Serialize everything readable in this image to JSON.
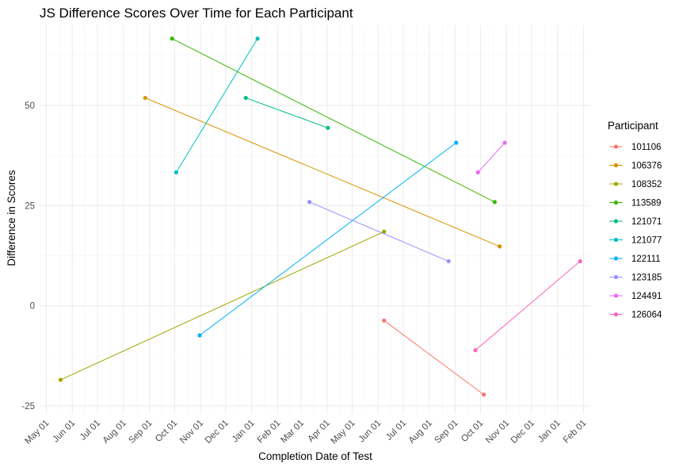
{
  "chart_data": {
    "type": "line",
    "title": "JS Difference Scores Over Time for Each Participant",
    "xlabel": "Completion Date of Test",
    "ylabel": "Difference in Scores",
    "x_ticks": [
      {
        "date": "2022-05-01",
        "label": "May 01"
      },
      {
        "date": "2022-06-01",
        "label": "Jun 01"
      },
      {
        "date": "2022-07-01",
        "label": "Jul 01"
      },
      {
        "date": "2022-08-01",
        "label": "Aug 01"
      },
      {
        "date": "2022-09-01",
        "label": "Sep 01"
      },
      {
        "date": "2022-10-01",
        "label": "Oct 01"
      },
      {
        "date": "2022-11-01",
        "label": "Nov 01"
      },
      {
        "date": "2022-12-01",
        "label": "Dec 01"
      },
      {
        "date": "2023-01-01",
        "label": "Jan 01"
      },
      {
        "date": "2023-02-01",
        "label": "Feb 01"
      },
      {
        "date": "2023-03-01",
        "label": "Mar 01"
      },
      {
        "date": "2023-04-01",
        "label": "Apr 01"
      },
      {
        "date": "2023-05-01",
        "label": "May 01"
      },
      {
        "date": "2023-06-01",
        "label": "Jun 01"
      },
      {
        "date": "2023-07-01",
        "label": "Jul 01"
      },
      {
        "date": "2023-08-01",
        "label": "Aug 01"
      },
      {
        "date": "2023-09-01",
        "label": "Sep 01"
      },
      {
        "date": "2023-10-01",
        "label": "Oct 01"
      },
      {
        "date": "2023-11-01",
        "label": "Nov 01"
      },
      {
        "date": "2023-12-01",
        "label": "Dec 01"
      },
      {
        "date": "2024-01-01",
        "label": "Jan 01"
      },
      {
        "date": "2024-02-01",
        "label": "Feb 01"
      }
    ],
    "xlim": [
      "2022-04-23",
      "2024-02-09"
    ],
    "y_ticks": [
      -25,
      0,
      25,
      50
    ],
    "ylim": [
      -27,
      70
    ],
    "grid": true,
    "legend_title": "Participant",
    "legend_position": "right",
    "series": [
      {
        "name": "101106",
        "color": "#F8766D",
        "points": [
          {
            "x": "2023-06-08",
            "y": -3.7
          },
          {
            "x": "2023-10-05",
            "y": -22.2
          }
        ]
      },
      {
        "name": "106376",
        "color": "#D89000",
        "points": [
          {
            "x": "2022-08-27",
            "y": 51.9
          },
          {
            "x": "2023-10-24",
            "y": 14.8
          }
        ]
      },
      {
        "name": "108352",
        "color": "#A3A500",
        "points": [
          {
            "x": "2022-05-18",
            "y": -18.5
          },
          {
            "x": "2023-06-08",
            "y": 18.5
          }
        ]
      },
      {
        "name": "113589",
        "color": "#39B600",
        "points": [
          {
            "x": "2022-09-28",
            "y": 66.7
          },
          {
            "x": "2023-10-18",
            "y": 25.9
          }
        ]
      },
      {
        "name": "121071",
        "color": "#00BF7D",
        "points": [
          {
            "x": "2022-12-25",
            "y": 51.9
          },
          {
            "x": "2023-04-02",
            "y": 44.4
          }
        ]
      },
      {
        "name": "121077",
        "color": "#00BFC4",
        "points": [
          {
            "x": "2022-10-03",
            "y": 33.3
          },
          {
            "x": "2023-01-08",
            "y": 66.7
          }
        ]
      },
      {
        "name": "122111",
        "color": "#00B0F6",
        "points": [
          {
            "x": "2022-10-31",
            "y": -7.4
          },
          {
            "x": "2023-09-02",
            "y": 40.7
          }
        ]
      },
      {
        "name": "123185",
        "color": "#9590FF",
        "points": [
          {
            "x": "2023-03-11",
            "y": 25.9
          },
          {
            "x": "2023-08-24",
            "y": 11.1
          }
        ]
      },
      {
        "name": "124491",
        "color": "#E76BF3",
        "points": [
          {
            "x": "2023-09-28",
            "y": 33.3
          },
          {
            "x": "2023-10-30",
            "y": 40.7
          }
        ]
      },
      {
        "name": "126064",
        "color": "#FF62BC",
        "points": [
          {
            "x": "2023-09-25",
            "y": -11.1
          },
          {
            "x": "2024-01-28",
            "y": 11.1
          }
        ]
      }
    ]
  }
}
